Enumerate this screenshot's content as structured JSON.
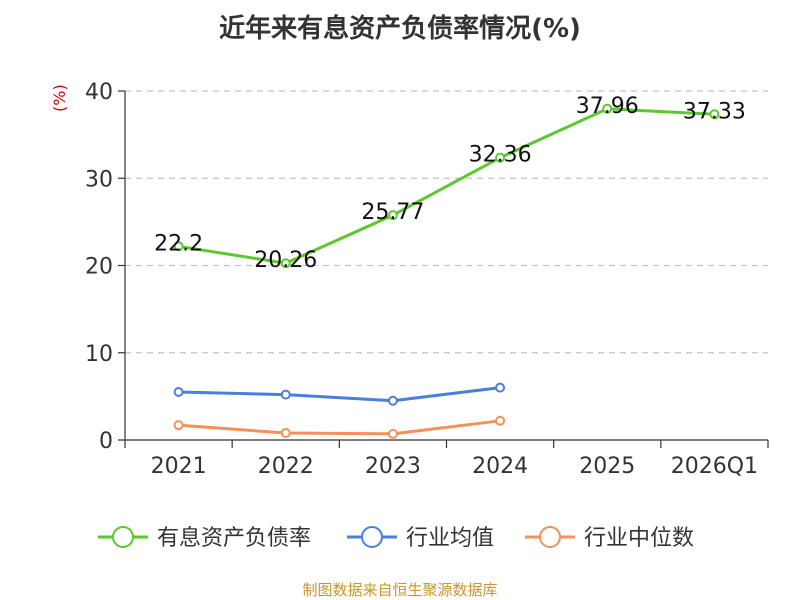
{
  "chart_data": {
    "type": "line",
    "title": "近年来有息资产负债率情况(%)",
    "ylabel": "(%)",
    "categories": [
      "2021",
      "2022",
      "2023",
      "2024",
      "2025",
      "2026Q1"
    ],
    "yticks": [
      0,
      10,
      20,
      30,
      40
    ],
    "ylim": [
      0,
      40
    ],
    "grid": true,
    "legend_position": "bottom",
    "series": [
      {
        "name": "有息资产负债率",
        "color": "#5dc72f",
        "values": [
          22.2,
          20.26,
          25.77,
          32.36,
          37.96,
          37.33
        ],
        "labels": [
          "22.2",
          "20.26",
          "25.77",
          "32.36",
          "37.96",
          "37.33"
        ]
      },
      {
        "name": "行业均值",
        "color": "#4a7fdc",
        "values": [
          5.5,
          5.2,
          4.5,
          6.0,
          null,
          null
        ]
      },
      {
        "name": "行业中位数",
        "color": "#f4905a",
        "values": [
          1.7,
          0.8,
          0.7,
          2.2,
          null,
          null
        ]
      }
    ]
  },
  "source": "制图数据来自恒生聚源数据库"
}
